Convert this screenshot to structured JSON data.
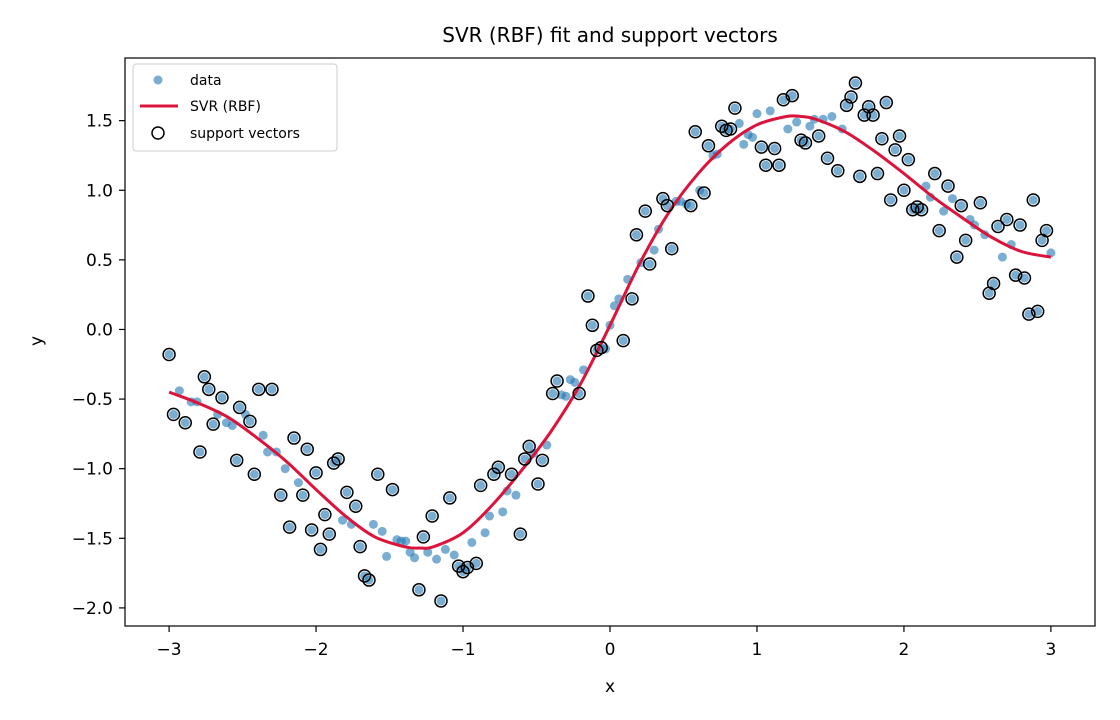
{
  "chart_data": {
    "type": "scatter",
    "title": "SVR (RBF) fit and support vectors",
    "xlabel": "x",
    "ylabel": "y",
    "xlim": [
      -3.3,
      3.3
    ],
    "ylim": [
      -2.13,
      1.95
    ],
    "xticks": [
      -3,
      -2,
      -1,
      0,
      1,
      2,
      3
    ],
    "xtick_labels": [
      "−3",
      "−2",
      "−1",
      "0",
      "1",
      "2",
      "3"
    ],
    "yticks": [
      -2.0,
      -1.5,
      -1.0,
      -0.5,
      0.0,
      0.5,
      1.0,
      1.5
    ],
    "ytick_labels": [
      "−2.0",
      "−1.5",
      "−1.0",
      "−0.5",
      "0.0",
      "0.5",
      "1.0",
      "1.5"
    ],
    "grid": false,
    "legend_position": "top-left",
    "legend": [
      {
        "label": "data",
        "kind": "point"
      },
      {
        "label": "SVR (RBF)",
        "kind": "line"
      },
      {
        "label": "support vectors",
        "kind": "ring"
      }
    ],
    "colors": {
      "data": "#1f77b4",
      "fit": "#dc143c",
      "support_edge": "#000000"
    },
    "data_points": [
      [
        -3.0,
        -0.18
      ],
      [
        -2.97,
        -0.61
      ],
      [
        -2.93,
        -0.44
      ],
      [
        -2.89,
        -0.67
      ],
      [
        -2.85,
        -0.52
      ],
      [
        -2.81,
        -0.52
      ],
      [
        -2.79,
        -0.88
      ],
      [
        -2.76,
        -0.34
      ],
      [
        -2.73,
        -0.43
      ],
      [
        -2.7,
        -0.68
      ],
      [
        -2.67,
        -0.61
      ],
      [
        -2.64,
        -0.49
      ],
      [
        -2.61,
        -0.67
      ],
      [
        -2.57,
        -0.69
      ],
      [
        -2.54,
        -0.94
      ],
      [
        -2.52,
        -0.56
      ],
      [
        -2.48,
        -0.61
      ],
      [
        -2.45,
        -0.66
      ],
      [
        -2.42,
        -1.04
      ],
      [
        -2.39,
        -0.43
      ],
      [
        -2.36,
        -0.76
      ],
      [
        -2.33,
        -0.88
      ],
      [
        -2.3,
        -0.43
      ],
      [
        -2.27,
        -0.88
      ],
      [
        -2.24,
        -1.19
      ],
      [
        -2.21,
        -1.0
      ],
      [
        -2.18,
        -1.42
      ],
      [
        -2.15,
        -0.78
      ],
      [
        -2.12,
        -1.1
      ],
      [
        -2.09,
        -1.19
      ],
      [
        -2.06,
        -0.86
      ],
      [
        -2.03,
        -1.44
      ],
      [
        -2.0,
        -1.03
      ],
      [
        -1.97,
        -1.58
      ],
      [
        -1.94,
        -1.33
      ],
      [
        -1.91,
        -1.47
      ],
      [
        -1.88,
        -0.96
      ],
      [
        -1.85,
        -0.93
      ],
      [
        -1.82,
        -1.37
      ],
      [
        -1.79,
        -1.17
      ],
      [
        -1.76,
        -1.4
      ],
      [
        -1.73,
        -1.27
      ],
      [
        -1.7,
        -1.56
      ],
      [
        -1.67,
        -1.77
      ],
      [
        -1.64,
        -1.8
      ],
      [
        -1.61,
        -1.4
      ],
      [
        -1.58,
        -1.04
      ],
      [
        -1.55,
        -1.45
      ],
      [
        -1.52,
        -1.63
      ],
      [
        -1.48,
        -1.15
      ],
      [
        -1.45,
        -1.51
      ],
      [
        -1.42,
        -1.52
      ],
      [
        -1.39,
        -1.52
      ],
      [
        -1.36,
        -1.6
      ],
      [
        -1.33,
        -1.64
      ],
      [
        -1.3,
        -1.87
      ],
      [
        -1.27,
        -1.49
      ],
      [
        -1.24,
        -1.6
      ],
      [
        -1.21,
        -1.34
      ],
      [
        -1.18,
        -1.65
      ],
      [
        -1.15,
        -1.95
      ],
      [
        -1.12,
        -1.58
      ],
      [
        -1.09,
        -1.21
      ],
      [
        -1.06,
        -1.62
      ],
      [
        -1.03,
        -1.7
      ],
      [
        -1.0,
        -1.74
      ],
      [
        -0.97,
        -1.71
      ],
      [
        -0.94,
        -1.53
      ],
      [
        -0.91,
        -1.68
      ],
      [
        -0.88,
        -1.12
      ],
      [
        -0.85,
        -1.46
      ],
      [
        -0.82,
        -1.34
      ],
      [
        -0.79,
        -1.04
      ],
      [
        -0.76,
        -0.99
      ],
      [
        -0.73,
        -1.31
      ],
      [
        -0.7,
        -1.16
      ],
      [
        -0.67,
        -1.04
      ],
      [
        -0.64,
        -1.19
      ],
      [
        -0.61,
        -1.47
      ],
      [
        -0.58,
        -0.93
      ],
      [
        -0.55,
        -0.84
      ],
      [
        -0.52,
        -0.89
      ],
      [
        -0.49,
        -1.11
      ],
      [
        -0.46,
        -0.94
      ],
      [
        -0.43,
        -0.83
      ],
      [
        -0.39,
        -0.46
      ],
      [
        -0.36,
        -0.37
      ],
      [
        -0.33,
        -0.47
      ],
      [
        -0.3,
        -0.48
      ],
      [
        -0.27,
        -0.36
      ],
      [
        -0.24,
        -0.38
      ],
      [
        -0.21,
        -0.46
      ],
      [
        -0.18,
        -0.29
      ],
      [
        -0.15,
        0.24
      ],
      [
        -0.12,
        0.03
      ],
      [
        -0.09,
        -0.15
      ],
      [
        -0.06,
        -0.13
      ],
      [
        -0.03,
        -0.14
      ],
      [
        0.0,
        0.03
      ],
      [
        0.03,
        0.17
      ],
      [
        0.06,
        0.22
      ],
      [
        0.09,
        -0.08
      ],
      [
        0.12,
        0.36
      ],
      [
        0.15,
        0.22
      ],
      [
        0.18,
        0.68
      ],
      [
        0.21,
        0.48
      ],
      [
        0.24,
        0.85
      ],
      [
        0.27,
        0.47
      ],
      [
        0.3,
        0.57
      ],
      [
        0.33,
        0.72
      ],
      [
        0.36,
        0.94
      ],
      [
        0.39,
        0.89
      ],
      [
        0.42,
        0.58
      ],
      [
        0.45,
        0.92
      ],
      [
        0.48,
        0.92
      ],
      [
        0.52,
        0.9
      ],
      [
        0.55,
        0.89
      ],
      [
        0.58,
        1.42
      ],
      [
        0.61,
        1.0
      ],
      [
        0.64,
        0.98
      ],
      [
        0.67,
        1.32
      ],
      [
        0.7,
        1.25
      ],
      [
        0.73,
        1.26
      ],
      [
        0.76,
        1.46
      ],
      [
        0.79,
        1.43
      ],
      [
        0.82,
        1.44
      ],
      [
        0.85,
        1.59
      ],
      [
        0.88,
        1.48
      ],
      [
        0.91,
        1.33
      ],
      [
        0.94,
        1.4
      ],
      [
        0.97,
        1.38
      ],
      [
        1.0,
        1.55
      ],
      [
        1.03,
        1.31
      ],
      [
        1.06,
        1.18
      ],
      [
        1.09,
        1.57
      ],
      [
        1.12,
        1.3
      ],
      [
        1.15,
        1.18
      ],
      [
        1.18,
        1.65
      ],
      [
        1.21,
        1.44
      ],
      [
        1.24,
        1.68
      ],
      [
        1.27,
        1.49
      ],
      [
        1.3,
        1.36
      ],
      [
        1.33,
        1.34
      ],
      [
        1.36,
        1.46
      ],
      [
        1.39,
        1.51
      ],
      [
        1.42,
        1.39
      ],
      [
        1.45,
        1.51
      ],
      [
        1.48,
        1.23
      ],
      [
        1.51,
        1.53
      ],
      [
        1.55,
        1.14
      ],
      [
        1.58,
        1.44
      ],
      [
        1.61,
        1.61
      ],
      [
        1.64,
        1.67
      ],
      [
        1.67,
        1.77
      ],
      [
        1.7,
        1.1
      ],
      [
        1.73,
        1.54
      ],
      [
        1.76,
        1.6
      ],
      [
        1.79,
        1.54
      ],
      [
        1.82,
        1.12
      ],
      [
        1.85,
        1.37
      ],
      [
        1.88,
        1.63
      ],
      [
        1.91,
        0.93
      ],
      [
        1.94,
        1.29
      ],
      [
        1.97,
        1.39
      ],
      [
        2.0,
        1.0
      ],
      [
        2.03,
        1.22
      ],
      [
        2.06,
        0.86
      ],
      [
        2.09,
        0.88
      ],
      [
        2.12,
        0.86
      ],
      [
        2.15,
        1.03
      ],
      [
        2.18,
        0.95
      ],
      [
        2.21,
        1.12
      ],
      [
        2.24,
        0.71
      ],
      [
        2.27,
        0.85
      ],
      [
        2.3,
        1.03
      ],
      [
        2.33,
        0.94
      ],
      [
        2.36,
        0.52
      ],
      [
        2.39,
        0.89
      ],
      [
        2.42,
        0.64
      ],
      [
        2.45,
        0.79
      ],
      [
        2.48,
        0.75
      ],
      [
        2.52,
        0.91
      ],
      [
        2.55,
        0.68
      ],
      [
        2.58,
        0.26
      ],
      [
        2.61,
        0.33
      ],
      [
        2.64,
        0.74
      ],
      [
        2.67,
        0.52
      ],
      [
        2.7,
        0.79
      ],
      [
        2.73,
        0.61
      ],
      [
        2.76,
        0.39
      ],
      [
        2.79,
        0.75
      ],
      [
        2.82,
        0.37
      ],
      [
        2.85,
        0.11
      ],
      [
        2.88,
        0.93
      ],
      [
        2.91,
        0.13
      ],
      [
        2.94,
        0.64
      ],
      [
        2.97,
        0.71
      ],
      [
        3.0,
        0.55
      ]
    ],
    "support_vectors": [
      [
        -3.0,
        -0.18
      ],
      [
        -2.97,
        -0.61
      ],
      [
        -2.89,
        -0.67
      ],
      [
        -2.79,
        -0.88
      ],
      [
        -2.76,
        -0.34
      ],
      [
        -2.73,
        -0.43
      ],
      [
        -2.7,
        -0.68
      ],
      [
        -2.64,
        -0.49
      ],
      [
        -2.54,
        -0.94
      ],
      [
        -2.52,
        -0.56
      ],
      [
        -2.45,
        -0.66
      ],
      [
        -2.42,
        -1.04
      ],
      [
        -2.39,
        -0.43
      ],
      [
        -2.3,
        -0.43
      ],
      [
        -2.24,
        -1.19
      ],
      [
        -2.18,
        -1.42
      ],
      [
        -2.15,
        -0.78
      ],
      [
        -2.09,
        -1.19
      ],
      [
        -2.06,
        -0.86
      ],
      [
        -2.03,
        -1.44
      ],
      [
        -2.0,
        -1.03
      ],
      [
        -1.97,
        -1.58
      ],
      [
        -1.94,
        -1.33
      ],
      [
        -1.91,
        -1.47
      ],
      [
        -1.88,
        -0.96
      ],
      [
        -1.85,
        -0.93
      ],
      [
        -1.79,
        -1.17
      ],
      [
        -1.73,
        -1.27
      ],
      [
        -1.7,
        -1.56
      ],
      [
        -1.67,
        -1.77
      ],
      [
        -1.64,
        -1.8
      ],
      [
        -1.58,
        -1.04
      ],
      [
        -1.48,
        -1.15
      ],
      [
        -1.3,
        -1.87
      ],
      [
        -1.27,
        -1.49
      ],
      [
        -1.21,
        -1.34
      ],
      [
        -1.15,
        -1.95
      ],
      [
        -1.09,
        -1.21
      ],
      [
        -1.03,
        -1.7
      ],
      [
        -1.0,
        -1.74
      ],
      [
        -0.97,
        -1.71
      ],
      [
        -0.91,
        -1.68
      ],
      [
        -0.88,
        -1.12
      ],
      [
        -0.79,
        -1.04
      ],
      [
        -0.76,
        -0.99
      ],
      [
        -0.67,
        -1.04
      ],
      [
        -0.61,
        -1.47
      ],
      [
        -0.58,
        -0.93
      ],
      [
        -0.55,
        -0.84
      ],
      [
        -0.49,
        -1.11
      ],
      [
        -0.46,
        -0.94
      ],
      [
        -0.39,
        -0.46
      ],
      [
        -0.36,
        -0.37
      ],
      [
        -0.21,
        -0.46
      ],
      [
        -0.15,
        0.24
      ],
      [
        -0.12,
        0.03
      ],
      [
        -0.09,
        -0.15
      ],
      [
        -0.06,
        -0.13
      ],
      [
        0.09,
        -0.08
      ],
      [
        0.15,
        0.22
      ],
      [
        0.18,
        0.68
      ],
      [
        0.24,
        0.85
      ],
      [
        0.27,
        0.47
      ],
      [
        0.36,
        0.94
      ],
      [
        0.39,
        0.89
      ],
      [
        0.42,
        0.58
      ],
      [
        0.55,
        0.89
      ],
      [
        0.58,
        1.42
      ],
      [
        0.64,
        0.98
      ],
      [
        0.67,
        1.32
      ],
      [
        0.76,
        1.46
      ],
      [
        0.79,
        1.43
      ],
      [
        0.82,
        1.44
      ],
      [
        0.85,
        1.59
      ],
      [
        1.03,
        1.31
      ],
      [
        1.06,
        1.18
      ],
      [
        1.12,
        1.3
      ],
      [
        1.15,
        1.18
      ],
      [
        1.18,
        1.65
      ],
      [
        1.24,
        1.68
      ],
      [
        1.3,
        1.36
      ],
      [
        1.33,
        1.34
      ],
      [
        1.42,
        1.39
      ],
      [
        1.48,
        1.23
      ],
      [
        1.55,
        1.14
      ],
      [
        1.61,
        1.61
      ],
      [
        1.64,
        1.67
      ],
      [
        1.67,
        1.77
      ],
      [
        1.7,
        1.1
      ],
      [
        1.73,
        1.54
      ],
      [
        1.76,
        1.6
      ],
      [
        1.79,
        1.54
      ],
      [
        1.82,
        1.12
      ],
      [
        1.85,
        1.37
      ],
      [
        1.88,
        1.63
      ],
      [
        1.91,
        0.93
      ],
      [
        1.94,
        1.29
      ],
      [
        1.97,
        1.39
      ],
      [
        2.0,
        1.0
      ],
      [
        2.03,
        1.22
      ],
      [
        2.06,
        0.86
      ],
      [
        2.09,
        0.88
      ],
      [
        2.12,
        0.86
      ],
      [
        2.21,
        1.12
      ],
      [
        2.24,
        0.71
      ],
      [
        2.3,
        1.03
      ],
      [
        2.36,
        0.52
      ],
      [
        2.39,
        0.89
      ],
      [
        2.42,
        0.64
      ],
      [
        2.52,
        0.91
      ],
      [
        2.58,
        0.26
      ],
      [
        2.61,
        0.33
      ],
      [
        2.64,
        0.74
      ],
      [
        2.7,
        0.79
      ],
      [
        2.76,
        0.39
      ],
      [
        2.79,
        0.75
      ],
      [
        2.82,
        0.37
      ],
      [
        2.85,
        0.11
      ],
      [
        2.88,
        0.93
      ],
      [
        2.91,
        0.13
      ],
      [
        2.94,
        0.64
      ],
      [
        2.97,
        0.71
      ]
    ],
    "fit_curve": {
      "x": [
        -3.0,
        -2.8,
        -2.6,
        -2.4,
        -2.2,
        -2.0,
        -1.8,
        -1.6,
        -1.4,
        -1.3,
        -1.2,
        -1.0,
        -0.8,
        -0.6,
        -0.4,
        -0.2,
        0.0,
        0.2,
        0.4,
        0.6,
        0.8,
        1.0,
        1.2,
        1.3,
        1.4,
        1.6,
        1.8,
        2.0,
        2.2,
        2.4,
        2.6,
        2.8,
        3.0
      ],
      "y": [
        -0.45,
        -0.53,
        -0.63,
        -0.78,
        -0.95,
        -1.15,
        -1.34,
        -1.49,
        -1.56,
        -1.57,
        -1.56,
        -1.46,
        -1.26,
        -1.01,
        -0.73,
        -0.39,
        0.03,
        0.47,
        0.84,
        1.12,
        1.33,
        1.47,
        1.53,
        1.53,
        1.51,
        1.42,
        1.28,
        1.12,
        0.95,
        0.8,
        0.66,
        0.56,
        0.52
      ]
    }
  }
}
